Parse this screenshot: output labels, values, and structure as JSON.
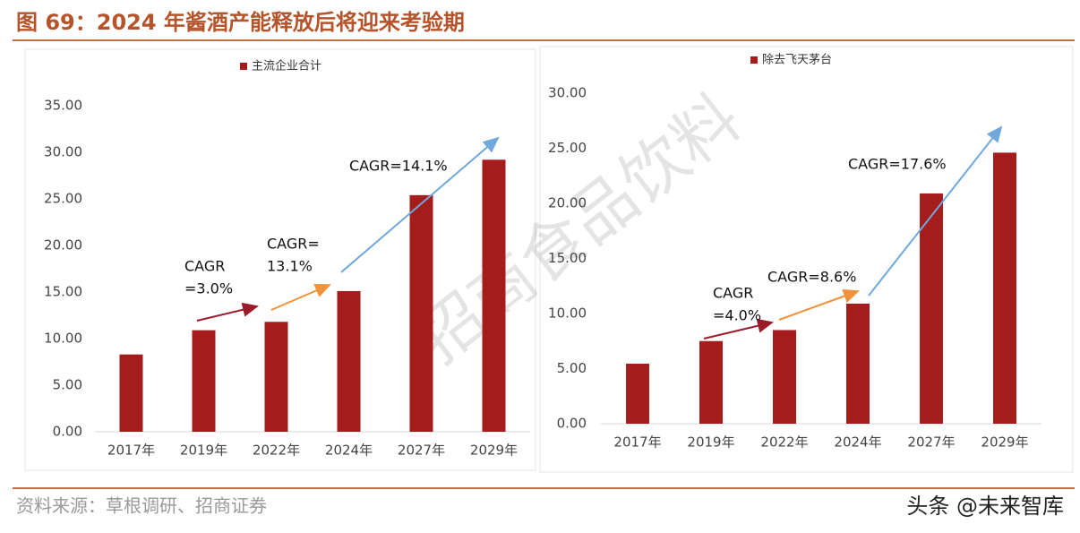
{
  "figure_title": "图 69：2024 年酱酒产能释放后将迎来考验期",
  "source": "资料来源：草根调研、招商证券",
  "watermark": "招商食品饮料",
  "logo": "头条 @未来智库",
  "chart_data": [
    {
      "type": "bar",
      "legend": "主流企业合计",
      "color": "#a51c1c",
      "categories": [
        "2017年",
        "2019年",
        "2022年",
        "2024年",
        "2027年",
        "2029年"
      ],
      "values": [
        8.3,
        10.9,
        11.8,
        15.1,
        25.4,
        29.2
      ],
      "ylim": [
        0,
        35
      ],
      "yticks": [
        {
          "value": 0,
          "label": "0.00"
        },
        {
          "value": 5,
          "label": "5.00"
        },
        {
          "value": 10,
          "label": "10.00"
        },
        {
          "value": 15,
          "label": "15.00"
        },
        {
          "value": 20,
          "label": "20.00"
        },
        {
          "value": 25,
          "label": "25.00"
        },
        {
          "value": 30,
          "label": "30.00"
        },
        {
          "value": 35,
          "label": "35.00"
        }
      ],
      "annotations": [
        [
          "CAGR",
          "=3.0%"
        ],
        [
          "CAGR=",
          "13.1%"
        ],
        [
          "CAGR=14.1%"
        ]
      ]
    },
    {
      "type": "bar",
      "legend": "除去飞天茅台",
      "color": "#a51c1c",
      "categories": [
        "2017年",
        "2019年",
        "2022年",
        "2024年",
        "2027年",
        "2029年"
      ],
      "values": [
        5.45,
        7.5,
        8.5,
        10.9,
        20.9,
        24.6
      ],
      "ylim": [
        0,
        30
      ],
      "yticks": [
        {
          "value": 0,
          "label": "0.00"
        },
        {
          "value": 5,
          "label": "5.00"
        },
        {
          "value": 10,
          "label": "10.00"
        },
        {
          "value": 15,
          "label": "15.00"
        },
        {
          "value": 20,
          "label": "20.00"
        },
        {
          "value": 25,
          "label": "25.00"
        },
        {
          "value": 30,
          "label": "30.00"
        }
      ],
      "annotations": [
        [
          "CAGR",
          "=4.0%"
        ],
        [
          "CAGR=8.6%"
        ],
        [
          "CAGR=17.6%"
        ]
      ]
    }
  ]
}
